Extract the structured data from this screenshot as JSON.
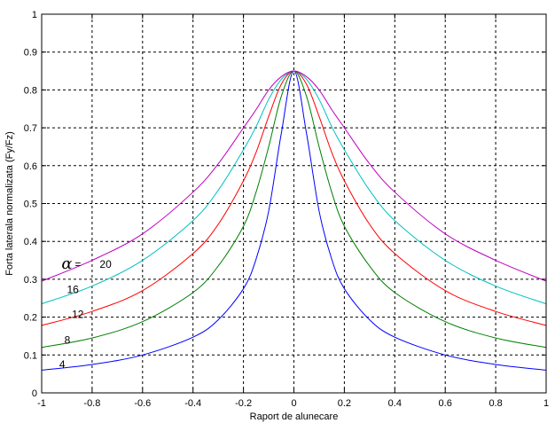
{
  "chart_data": {
    "type": "line",
    "xlabel": "Raport de alunecare",
    "ylabel": "Forta laterala normalizata (Fy/Fz)",
    "xlim": [
      -1,
      1
    ],
    "ylim": [
      0,
      1
    ],
    "xticks": [
      "-1",
      "-0.8",
      "-0.6",
      "-0.4",
      "-0.2",
      "0",
      "0.2",
      "0.4",
      "0.6",
      "0.8",
      "1"
    ],
    "yticks": [
      "0",
      "0.1",
      "0.2",
      "0.3",
      "0.4",
      "0.5",
      "0.6",
      "0.7",
      "0.8",
      "0.9",
      "1"
    ],
    "grid": true,
    "legend": "none",
    "alpha_symbol": "α",
    "alpha_equals": "=",
    "x": [
      -1,
      -0.8,
      -0.6,
      -0.4,
      -0.3,
      -0.2,
      -0.15,
      -0.1,
      -0.05,
      0,
      0.05,
      0.1,
      0.15,
      0.2,
      0.3,
      0.4,
      0.6,
      0.8,
      1
    ],
    "series": [
      {
        "name": "4",
        "color": "#0000ff",
        "values": [
          0.06,
          0.075,
          0.1,
          0.147,
          0.193,
          0.275,
          0.353,
          0.48,
          0.685,
          0.85,
          0.685,
          0.48,
          0.353,
          0.275,
          0.193,
          0.147,
          0.1,
          0.075,
          0.06
        ]
      },
      {
        "name": "8",
        "color": "#007f00",
        "values": [
          0.12,
          0.145,
          0.188,
          0.265,
          0.335,
          0.44,
          0.53,
          0.65,
          0.783,
          0.85,
          0.783,
          0.65,
          0.53,
          0.44,
          0.335,
          0.265,
          0.188,
          0.145,
          0.12
        ]
      },
      {
        "name": "12",
        "color": "#ff0000",
        "values": [
          0.178,
          0.215,
          0.27,
          0.368,
          0.445,
          0.56,
          0.635,
          0.73,
          0.815,
          0.85,
          0.815,
          0.73,
          0.635,
          0.56,
          0.445,
          0.368,
          0.27,
          0.215,
          0.178
        ]
      },
      {
        "name": "16",
        "color": "#00bfbf",
        "values": [
          0.235,
          0.282,
          0.35,
          0.455,
          0.535,
          0.642,
          0.703,
          0.775,
          0.828,
          0.85,
          0.828,
          0.775,
          0.703,
          0.642,
          0.535,
          0.455,
          0.35,
          0.282,
          0.235
        ]
      },
      {
        "name": "20",
        "color": "#bf00bf",
        "values": [
          0.295,
          0.35,
          0.42,
          0.53,
          0.605,
          0.7,
          0.748,
          0.8,
          0.835,
          0.85,
          0.835,
          0.8,
          0.748,
          0.7,
          0.605,
          0.53,
          0.42,
          0.35,
          0.295
        ]
      }
    ],
    "annotations": [
      {
        "text": "4",
        "x": -0.93,
        "y": 0.065
      },
      {
        "text": "8",
        "x": -0.91,
        "y": 0.13
      },
      {
        "text": "12",
        "x": -0.88,
        "y": 0.198
      },
      {
        "text": "16",
        "x": -0.9,
        "y": 0.263
      },
      {
        "text": "20",
        "x": -0.77,
        "y": 0.33
      }
    ]
  }
}
